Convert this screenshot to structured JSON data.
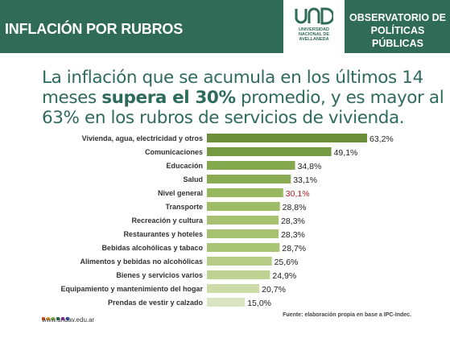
{
  "header": {
    "title": "INFLACIÓN POR RUBROS",
    "logo_text": [
      "UNIVERSIDAD",
      "NACIONAL DE",
      "AVELLANEDA"
    ],
    "observatory": [
      "OBSERVATORIO DE",
      "POLÍTICAS PÚBLICAS"
    ],
    "brand_color": "#2f6b57"
  },
  "headline": {
    "part1": "La inflación que se acumula en los últimos 14 meses ",
    "bold": "supera el 30%",
    "part2": " promedio, y es mayor al 63% en los rubros de servicios de vivienda."
  },
  "chart_data": {
    "type": "bar",
    "orientation": "horizontal",
    "categories": [
      "Vivienda, agua, electricidad y otros",
      "Comunicaciones",
      "Educación",
      "Salud",
      "Nivel general",
      "Transporte",
      "Recreación y cultura",
      "Restaurantes y hoteles",
      "Bebidas alcohólicas y tabaco",
      "Alimentos y bebidas no alcohólicas",
      "Bienes y servicios varios",
      "Equipamiento y mantenimiento del hogar",
      "Prendas de vestir y calzado"
    ],
    "values": [
      63.2,
      49.1,
      34.8,
      33.1,
      30.1,
      28.8,
      28.3,
      28.3,
      28.7,
      25.6,
      24.9,
      20.7,
      15.0
    ],
    "value_labels": [
      "63,2%",
      "49,1%",
      "34,8%",
      "33,1%",
      "30,1%",
      "28,8%",
      "28,3%",
      "28,3%",
      "28,7%",
      "25,6%",
      "24,9%",
      "20,7%",
      "15,0%"
    ],
    "highlight_category": "Nivel general",
    "highlight_label_color": "#b22222",
    "colors": [
      "#6d8f3a",
      "#769a42",
      "#84a84d",
      "#89ac52",
      "#98b860",
      "#9fbd66",
      "#a6c270",
      "#a6c270",
      "#a9c474",
      "#b6cc86",
      "#bfd294",
      "#ccdba8",
      "#d9e4c0"
    ],
    "xlim": [
      0,
      63.2
    ]
  },
  "footer": {
    "url": "www.undav.edu.ar",
    "source": "Fuente: elaboración propia en base a IPC-Indec.",
    "dot_colors": [
      "#e94e1b",
      "#f5a623",
      "#8bc34a",
      "#2f6b57",
      "#9c27b0",
      "#3f51b5"
    ]
  }
}
